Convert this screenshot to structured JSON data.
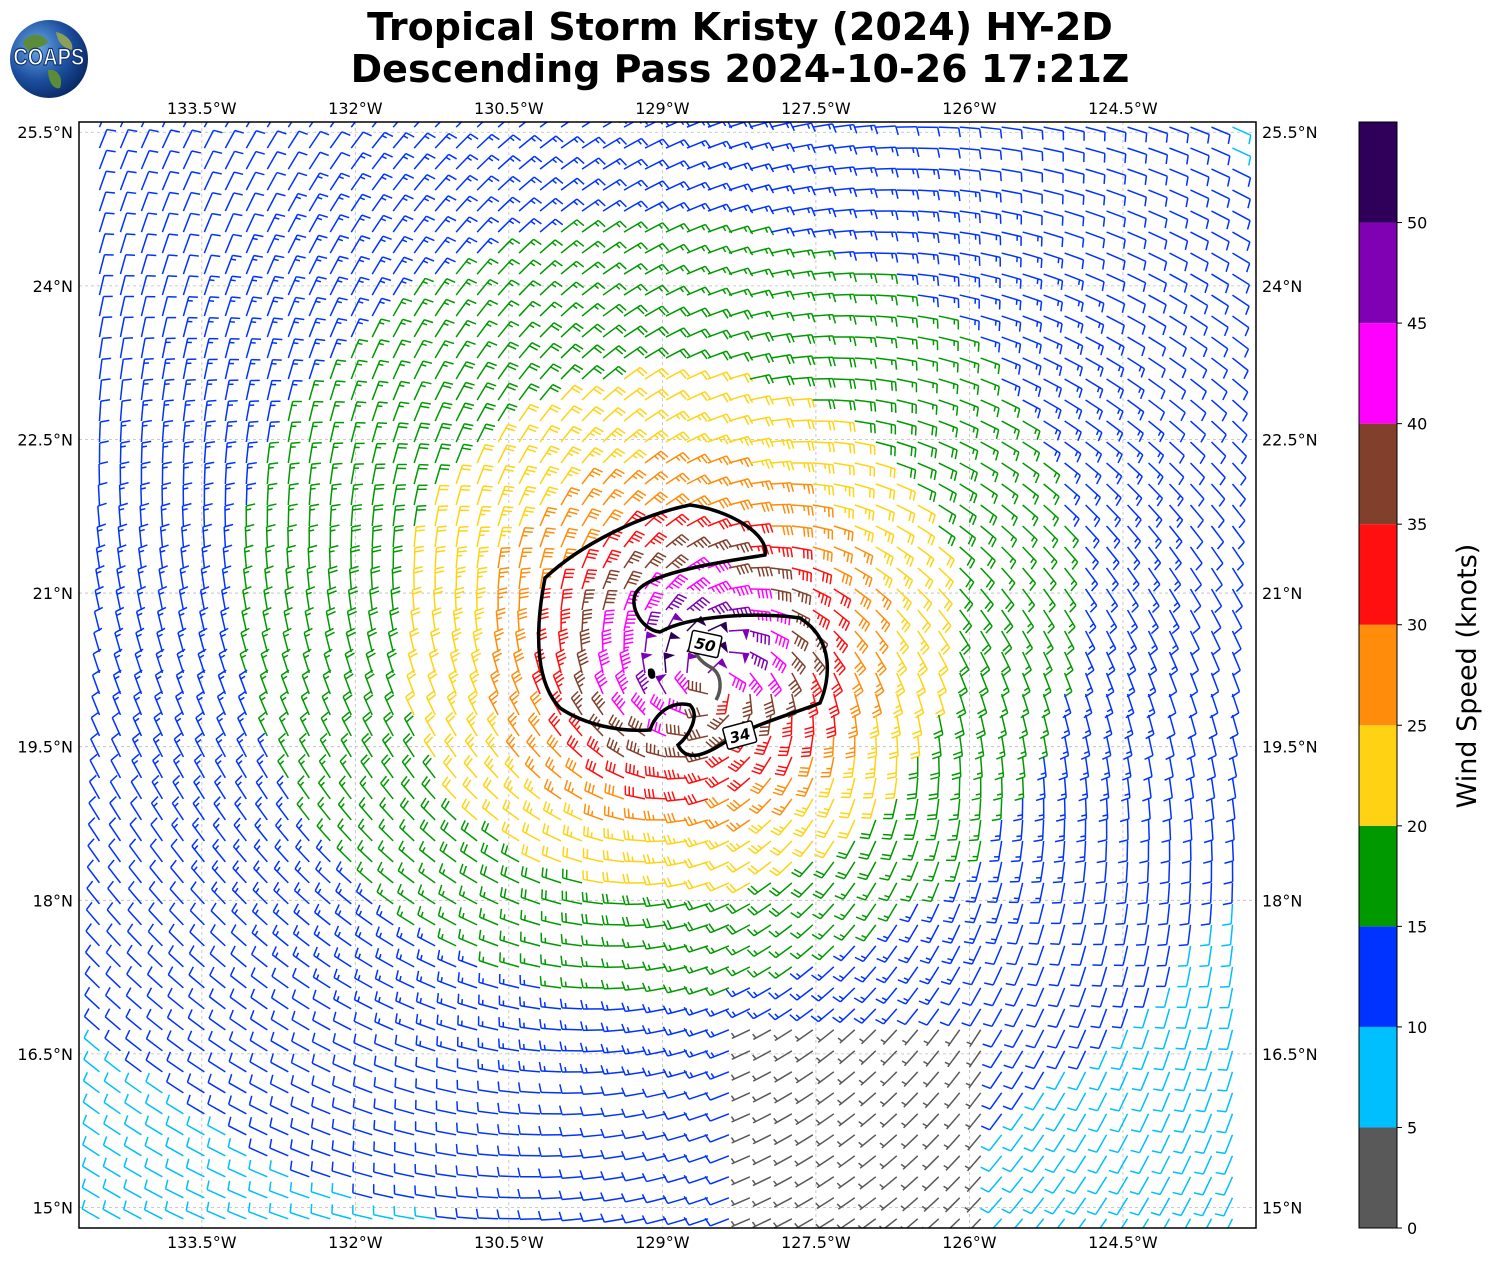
{
  "title": {
    "line1": "Tropical Storm Kristy (2024) HY-2D",
    "line2": "Descending Pass 2024-10-26 17:21Z"
  },
  "logo": {
    "text": "COAPS",
    "icon": "globe-icon"
  },
  "map": {
    "lon_ticks": [
      "133.5°W",
      "132°W",
      "130.5°W",
      "129°W",
      "127.5°W",
      "126°W",
      "124.5°W"
    ],
    "lon_values": [
      -133.5,
      -132,
      -130.5,
      -129,
      -127.5,
      -126,
      -124.5
    ],
    "lat_ticks": [
      "25.5°N",
      "24°N",
      "22.5°N",
      "21°N",
      "19.5°N",
      "18°N",
      "16.5°N",
      "15°N"
    ],
    "lat_values": [
      25.5,
      24,
      22.5,
      21,
      19.5,
      18,
      16.5,
      15
    ],
    "lon_range": [
      -134.7,
      -123.2
    ],
    "lat_range": [
      14.8,
      25.6
    ],
    "storm_center": {
      "lon": -128.5,
      "lat": 20.1
    },
    "contours": [
      {
        "label": "34"
      },
      {
        "label": "50"
      }
    ],
    "gridlines": true
  },
  "colorbar": {
    "label": "Wind Speed (knots)",
    "ticks": [
      "0",
      "5",
      "10",
      "15",
      "20",
      "25",
      "30",
      "35",
      "40",
      "45",
      "50"
    ],
    "bins": [
      {
        "min": 0,
        "max": 5,
        "color": "#595959"
      },
      {
        "min": 5,
        "max": 10,
        "color": "#00bfff"
      },
      {
        "min": 10,
        "max": 15,
        "color": "#0033ff"
      },
      {
        "min": 15,
        "max": 20,
        "color": "#009900"
      },
      {
        "min": 20,
        "max": 25,
        "color": "#ffd314"
      },
      {
        "min": 25,
        "max": 30,
        "color": "#ff8c0a"
      },
      {
        "min": 30,
        "max": 35,
        "color": "#ff0f0f"
      },
      {
        "min": 35,
        "max": 40,
        "color": "#80402b"
      },
      {
        "min": 40,
        "max": 45,
        "color": "#ff00ff"
      },
      {
        "min": 45,
        "max": 50,
        "color": "#8000b3"
      },
      {
        "min": 50,
        "max": 55,
        "color": "#2e0059"
      }
    ]
  }
}
